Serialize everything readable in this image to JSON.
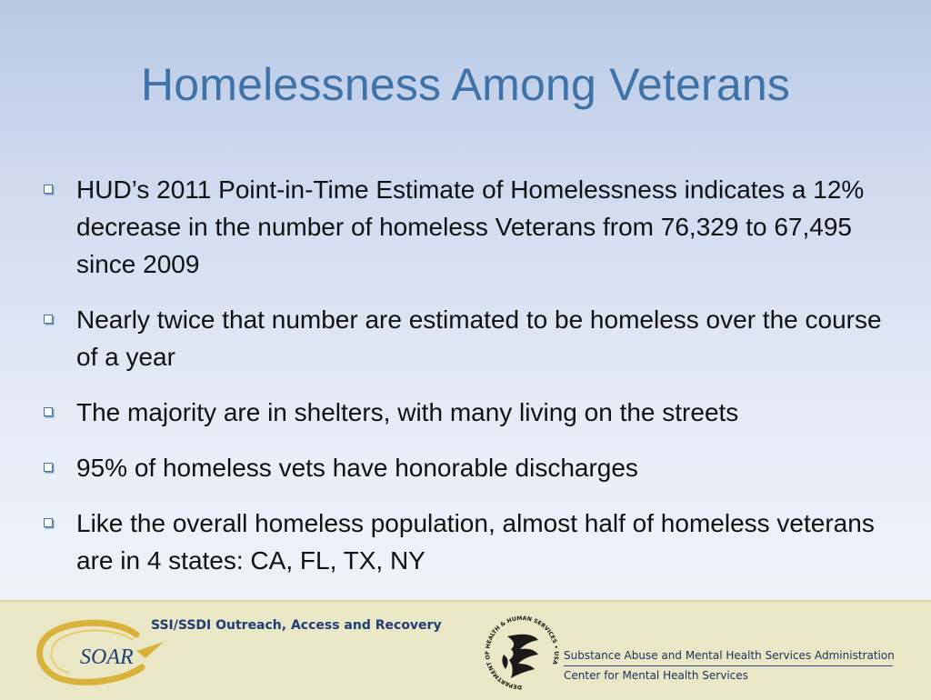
{
  "slide": {
    "title": "Homelessness Among Veterans",
    "bullets": [
      "HUD’s 2011 Point-in-Time Estimate of Homelessness indicates a 12% decrease in the number of homeless Veterans from 76,329 to 67,495 since 2009",
      "Nearly twice that number are estimated to be homeless over the course of a year",
      "The majority are in shelters, with many living on the streets",
      "95% of homeless vets have honorable discharges",
      "Like the overall homeless population, almost half of homeless veterans are in 4 states: CA, FL, TX, NY"
    ]
  },
  "footer": {
    "soar_logo_text": "SOAR",
    "soar_tagline": "SSI/SSDI Outreach, Access and Recovery",
    "seal_text": "DEPARTMENT OF HEALTH & HUMAN SERVICES • USA",
    "samhsa_line1": "Substance Abuse and Mental Health Services Administration",
    "samhsa_line2": "Center for Mental Health Services"
  },
  "colors": {
    "title": "#3f72a8",
    "bullet_marker": "#3f72a8",
    "footer_bg": "#e9e7c5",
    "soar_gold": "#d9b23a",
    "soar_navy": "#1f3e78"
  }
}
